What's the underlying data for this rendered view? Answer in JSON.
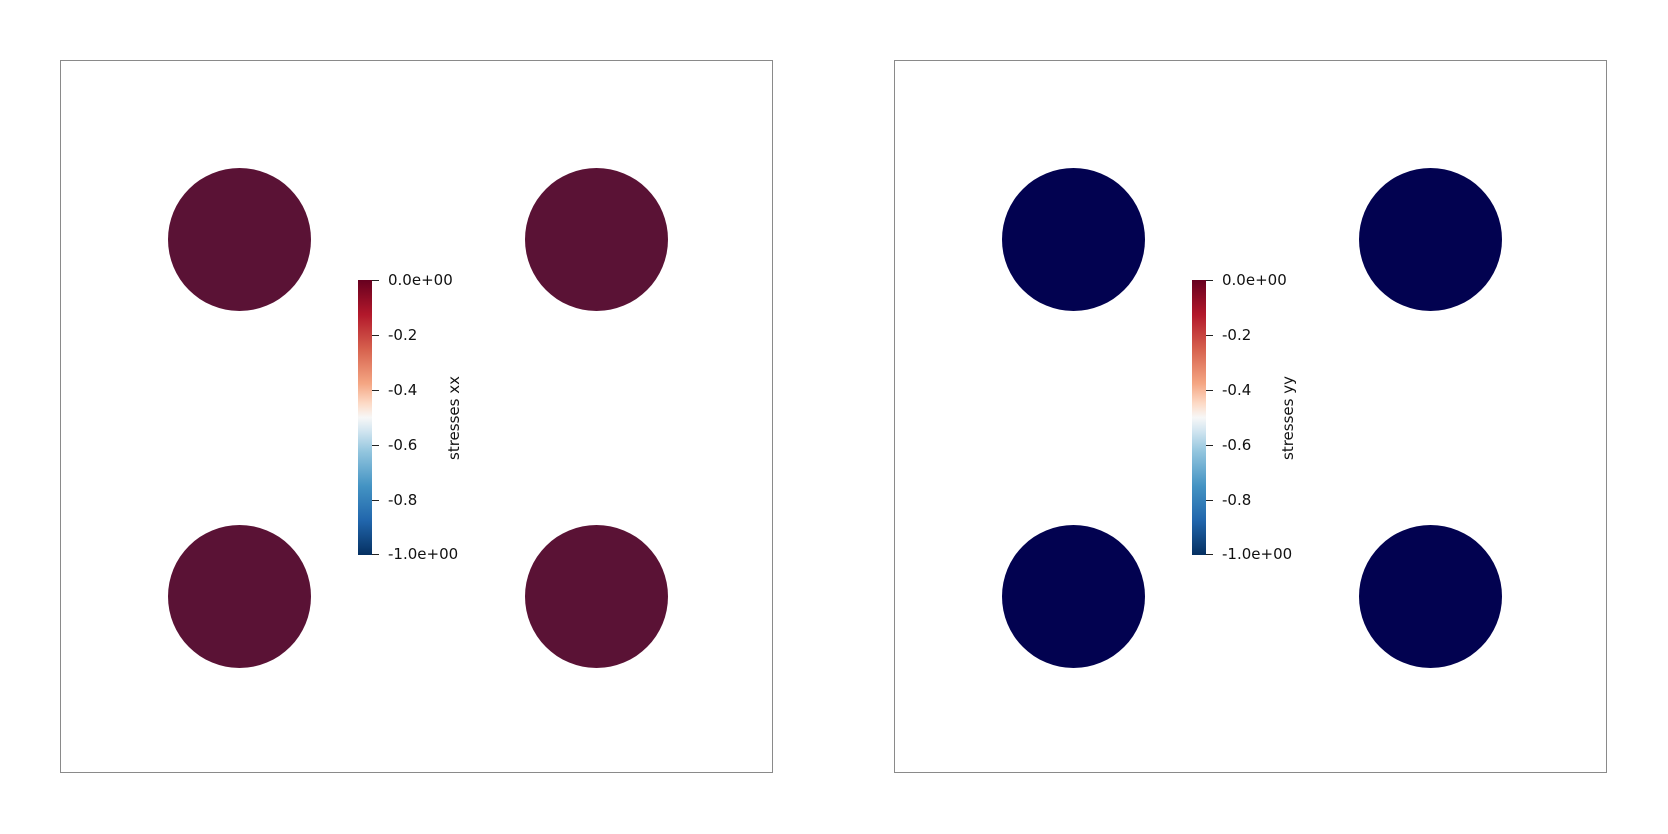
{
  "panels": [
    {
      "field": "stresses xx",
      "inclusion_color": "#5a1235",
      "colorbar": {
        "ticks": [
          "0.0e+00",
          "-0.2",
          "-0.4",
          "-0.6",
          "-0.8",
          "-1.0e+00"
        ],
        "range": [
          -1.0,
          0.0
        ],
        "colormap": "Cool to Warm (reversed, red-white-blue)"
      }
    },
    {
      "field": "stresses yy",
      "inclusion_color": "#020250",
      "colorbar": {
        "ticks": [
          "0.0e+00",
          "-0.2",
          "-0.4",
          "-0.6",
          "-0.8",
          "-1.0e+00"
        ],
        "range": [
          -1.0,
          0.0
        ],
        "colormap": "Cool to Warm (reversed, red-white-blue)"
      }
    }
  ]
}
